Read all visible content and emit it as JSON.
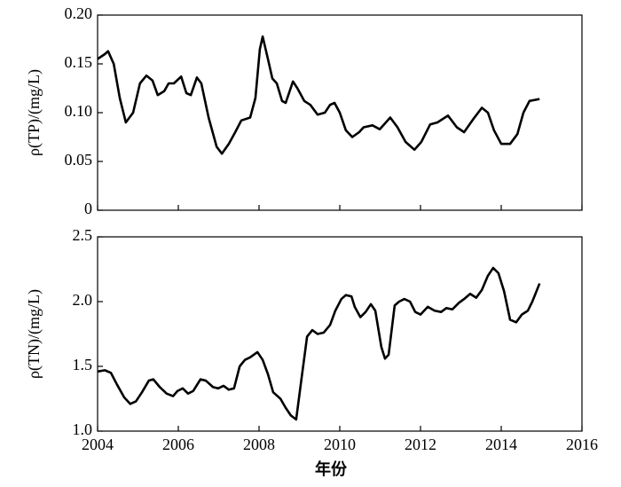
{
  "chart_data": [
    {
      "type": "line",
      "ylabel": "ρ(TP)/(mg/L)",
      "xlim": [
        2004,
        2016
      ],
      "ylim": [
        0,
        0.2
      ],
      "yticks": [
        0,
        0.05,
        {
          "value": 0.1,
          "label": "0.10"
        },
        0.15,
        {
          "value": 0.2,
          "label": "0.20"
        }
      ],
      "x": [
        2004.0,
        2004.18,
        2004.26,
        2004.4,
        2004.55,
        2004.7,
        2004.88,
        2005.05,
        2005.21,
        2005.36,
        2005.49,
        2005.65,
        2005.76,
        2005.89,
        2006.07,
        2006.2,
        2006.31,
        2006.46,
        2006.57,
        2006.75,
        2006.95,
        2007.08,
        2007.25,
        2007.41,
        2007.56,
        2007.78,
        2007.91,
        2008.02,
        2008.09,
        2008.22,
        2008.33,
        2008.44,
        2008.57,
        2008.66,
        2008.84,
        2008.95,
        2009.12,
        2009.27,
        2009.45,
        2009.63,
        2009.76,
        2009.87,
        2010.0,
        2010.15,
        2010.31,
        2010.48,
        2010.59,
        2010.81,
        2010.99,
        2011.25,
        2011.43,
        2011.63,
        2011.85,
        2012.02,
        2012.24,
        2012.42,
        2012.68,
        2012.9,
        2013.08,
        2013.3,
        2013.52,
        2013.67,
        2013.82,
        2014.0,
        2014.22,
        2014.4,
        2014.55,
        2014.7,
        2014.95
      ],
      "series": [
        {
          "color": "#000000",
          "values": [
            0.155,
            0.16,
            0.163,
            0.15,
            0.115,
            0.09,
            0.1,
            0.13,
            0.138,
            0.133,
            0.118,
            0.122,
            0.13,
            0.13,
            0.137,
            0.12,
            0.118,
            0.136,
            0.13,
            0.095,
            0.065,
            0.058,
            0.068,
            0.08,
            0.092,
            0.095,
            0.115,
            0.165,
            0.178,
            0.155,
            0.135,
            0.13,
            0.112,
            0.11,
            0.132,
            0.125,
            0.112,
            0.108,
            0.098,
            0.1,
            0.108,
            0.11,
            0.1,
            0.082,
            0.075,
            0.08,
            0.085,
            0.087,
            0.083,
            0.095,
            0.085,
            0.07,
            0.062,
            0.07,
            0.088,
            0.09,
            0.097,
            0.085,
            0.08,
            0.093,
            0.105,
            0.1,
            0.082,
            0.068,
            0.068,
            0.078,
            0.1,
            0.112,
            0.114
          ]
        }
      ]
    },
    {
      "type": "line",
      "ylabel": "ρ(TN)/(mg/L)",
      "xlabel": "年份",
      "xlim": [
        2004,
        2016
      ],
      "xticks": [
        2004,
        2006,
        2008,
        2010,
        2012,
        2014,
        2016
      ],
      "ylim": [
        1,
        2.5
      ],
      "yticks": [
        {
          "value": 1,
          "label": "1.0"
        },
        1.5,
        {
          "value": 2,
          "label": "2.0"
        },
        2.5
      ],
      "x": [
        2004.0,
        2004.18,
        2004.33,
        2004.48,
        2004.66,
        2004.81,
        2004.95,
        2005.1,
        2005.27,
        2005.38,
        2005.54,
        2005.71,
        2005.87,
        2005.98,
        2006.11,
        2006.24,
        2006.37,
        2006.55,
        2006.68,
        2006.86,
        2006.99,
        2007.12,
        2007.25,
        2007.38,
        2007.52,
        2007.65,
        2007.78,
        2007.96,
        2008.09,
        2008.22,
        2008.35,
        2008.53,
        2008.66,
        2008.79,
        2008.92,
        2009.05,
        2009.19,
        2009.32,
        2009.45,
        2009.6,
        2009.76,
        2009.89,
        2010.04,
        2010.15,
        2010.29,
        2010.37,
        2010.51,
        2010.64,
        2010.77,
        2010.88,
        2011.03,
        2011.12,
        2011.21,
        2011.36,
        2011.47,
        2011.6,
        2011.74,
        2011.87,
        2012.0,
        2012.18,
        2012.35,
        2012.51,
        2012.64,
        2012.79,
        2012.95,
        2013.08,
        2013.23,
        2013.38,
        2013.52,
        2013.67,
        2013.8,
        2013.93,
        2014.07,
        2014.22,
        2014.37,
        2014.51,
        2014.66,
        2014.77,
        2014.95
      ],
      "series": [
        {
          "color": "#000000",
          "values": [
            1.46,
            1.47,
            1.45,
            1.36,
            1.26,
            1.21,
            1.23,
            1.3,
            1.39,
            1.4,
            1.34,
            1.29,
            1.27,
            1.31,
            1.33,
            1.29,
            1.31,
            1.4,
            1.39,
            1.34,
            1.33,
            1.35,
            1.32,
            1.33,
            1.5,
            1.55,
            1.57,
            1.61,
            1.55,
            1.44,
            1.3,
            1.25,
            1.18,
            1.12,
            1.09,
            1.4,
            1.73,
            1.78,
            1.75,
            1.76,
            1.82,
            1.93,
            2.02,
            2.05,
            2.04,
            1.96,
            1.88,
            1.92,
            1.98,
            1.93,
            1.65,
            1.56,
            1.59,
            1.97,
            2.0,
            2.02,
            2.0,
            1.92,
            1.9,
            1.96,
            1.93,
            1.92,
            1.95,
            1.94,
            1.99,
            2.02,
            2.06,
            2.03,
            2.09,
            2.2,
            2.26,
            2.22,
            2.08,
            1.86,
            1.84,
            1.9,
            1.93,
            2.0,
            2.14
          ]
        }
      ]
    }
  ]
}
